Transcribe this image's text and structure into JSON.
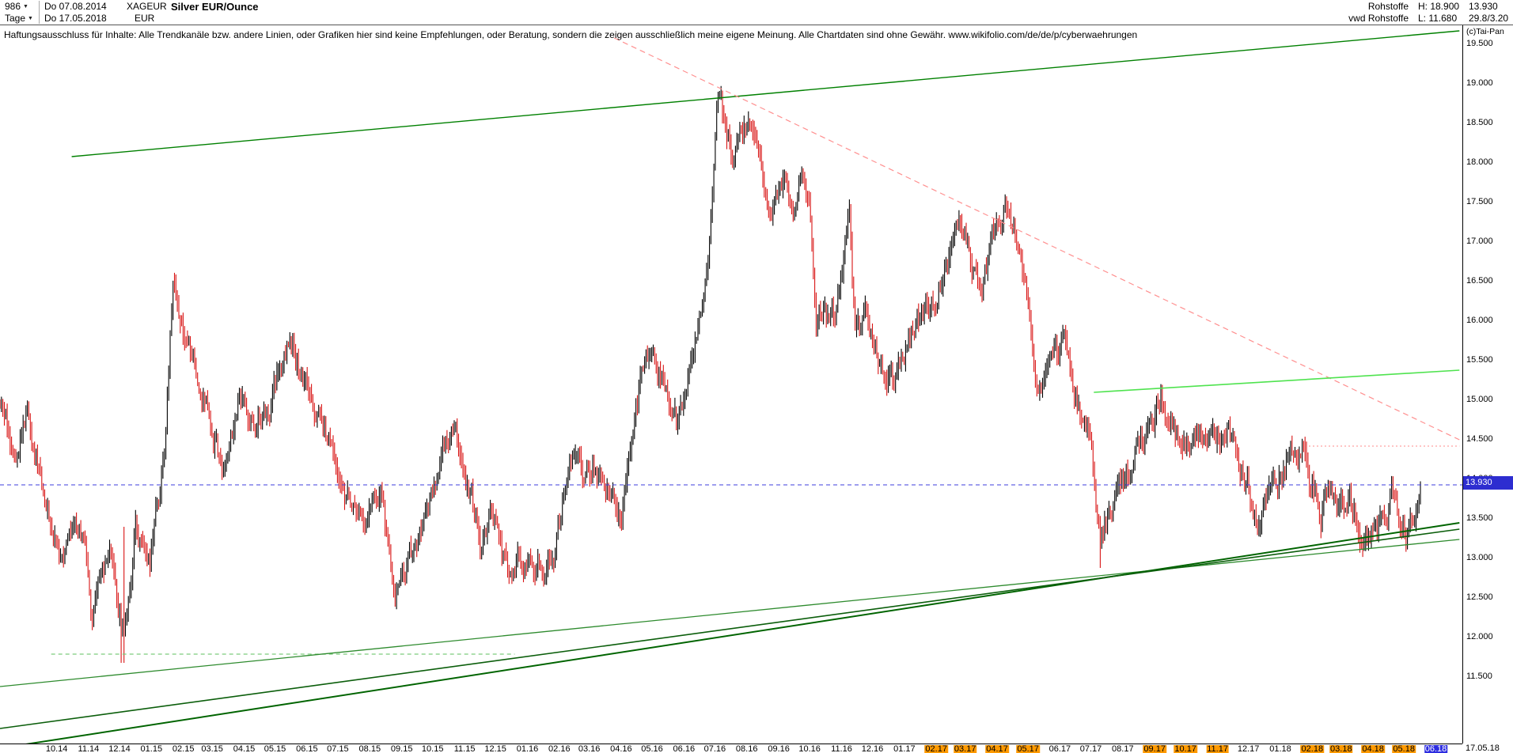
{
  "header": {
    "bars_count": "986",
    "period": "Tage",
    "date_from": "Do 07.08.2014",
    "date_to": "Do 17.05.2018",
    "symbol": "XAGEUR",
    "currency": "EUR",
    "title": "Silver EUR/Ounce",
    "group": "Rohstoffe",
    "source": "vwd Rohstoffe",
    "high_label": "H: 18.900",
    "low_label": "L: 11.680",
    "last_value": "13.930",
    "extra_value": "29.8/3.20",
    "copyright": "(c)Tai-Pan"
  },
  "disclaimer": "Haftungsausschluss für Inhalte: Alle Trendkanäle bzw. andere Linien, oder Grafiken hier sind keine Empfehlungen, oder Beratung, sondern die zeigen ausschließlich meine eigene Meinung. Alle Chartdaten sind ohne Gewähr.  www.wikifolio.com/de/de/p/cyberwaehrungen",
  "axis": {
    "price_badge": "13.930",
    "last_date": "17.05.18"
  },
  "chart_data": {
    "type": "ohlc-bar",
    "title": "Silver EUR/Ounce",
    "period": "Tage",
    "x_range": [
      "2014-08-07",
      "2018-05-17"
    ],
    "bar_count": 986,
    "high": 18.9,
    "low": 11.68,
    "last_close": 13.93,
    "ylim": [
      10.66,
      19.75
    ],
    "y_ticks": [
      "19.500",
      "19.000",
      "18.500",
      "18.000",
      "17.500",
      "17.000",
      "16.500",
      "16.000",
      "15.500",
      "15.000",
      "14.500",
      "14.000",
      "13.500",
      "13.000",
      "12.500",
      "12.000",
      "11.500"
    ],
    "x_ticks": [
      {
        "label": "10.14",
        "highlight": "none"
      },
      {
        "label": "11.14",
        "highlight": "none"
      },
      {
        "label": "12.14",
        "highlight": "none"
      },
      {
        "label": "01.15",
        "highlight": "none"
      },
      {
        "label": "02.15",
        "highlight": "none"
      },
      {
        "label": "03.15",
        "highlight": "none"
      },
      {
        "label": "04.15",
        "highlight": "none"
      },
      {
        "label": "05.15",
        "highlight": "none"
      },
      {
        "label": "06.15",
        "highlight": "none"
      },
      {
        "label": "07.15",
        "highlight": "none"
      },
      {
        "label": "08.15",
        "highlight": "none"
      },
      {
        "label": "09.15",
        "highlight": "none"
      },
      {
        "label": "10.15",
        "highlight": "none"
      },
      {
        "label": "11.15",
        "highlight": "none"
      },
      {
        "label": "12.15",
        "highlight": "none"
      },
      {
        "label": "01.16",
        "highlight": "none"
      },
      {
        "label": "02.16",
        "highlight": "none"
      },
      {
        "label": "03.16",
        "highlight": "none"
      },
      {
        "label": "04.16",
        "highlight": "none"
      },
      {
        "label": "05.16",
        "highlight": "none"
      },
      {
        "label": "06.16",
        "highlight": "none"
      },
      {
        "label": "07.16",
        "highlight": "none"
      },
      {
        "label": "08.16",
        "highlight": "none"
      },
      {
        "label": "09.16",
        "highlight": "none"
      },
      {
        "label": "10.16",
        "highlight": "none"
      },
      {
        "label": "11.16",
        "highlight": "none"
      },
      {
        "label": "12.16",
        "highlight": "none"
      },
      {
        "label": "01.17",
        "highlight": "none"
      },
      {
        "label": "02.17",
        "highlight": "orange"
      },
      {
        "label": "03.17",
        "highlight": "orange"
      },
      {
        "label": "04.17",
        "highlight": "orange"
      },
      {
        "label": "05.17",
        "highlight": "orange"
      },
      {
        "label": "06.17",
        "highlight": "none"
      },
      {
        "label": "07.17",
        "highlight": "none"
      },
      {
        "label": "08.17",
        "highlight": "none"
      },
      {
        "label": "09.17",
        "highlight": "orange"
      },
      {
        "label": "10.17",
        "highlight": "orange"
      },
      {
        "label": "11.17",
        "highlight": "orange"
      },
      {
        "label": "12.17",
        "highlight": "none"
      },
      {
        "label": "01.18",
        "highlight": "none"
      },
      {
        "label": "02.18",
        "highlight": "orange"
      },
      {
        "label": "03.18",
        "highlight": "orange"
      },
      {
        "label": "04.18",
        "highlight": "orange"
      },
      {
        "label": "05.18",
        "highlight": "orange"
      },
      {
        "label": "06.18",
        "highlight": "blue"
      }
    ],
    "anchors": [
      [
        "2014-08-07",
        14.8
      ],
      [
        "2014-08-20",
        14.45
      ],
      [
        "2014-09-02",
        14.9
      ],
      [
        "2014-09-22",
        13.65
      ],
      [
        "2014-10-03",
        13.05
      ],
      [
        "2014-10-13",
        13.45
      ],
      [
        "2014-10-29",
        13.15
      ],
      [
        "2014-11-05",
        12.35
      ],
      [
        "2014-11-21",
        12.95
      ],
      [
        "2014-11-28",
        12.4
      ],
      [
        "2014-12-05",
        11.95
      ],
      [
        "2014-12-16",
        13.45
      ],
      [
        "2014-12-31",
        13.0
      ],
      [
        "2015-01-14",
        14.3
      ],
      [
        "2015-01-22",
        16.55
      ],
      [
        "2015-02-02",
        15.9
      ],
      [
        "2015-02-13",
        15.25
      ],
      [
        "2015-02-24",
        14.85
      ],
      [
        "2015-03-11",
        14.15
      ],
      [
        "2015-03-26",
        14.9
      ],
      [
        "2015-04-10",
        14.7
      ],
      [
        "2015-04-24",
        14.8
      ],
      [
        "2015-05-14",
        15.85
      ],
      [
        "2015-05-26",
        15.4
      ],
      [
        "2015-06-08",
        14.7
      ],
      [
        "2015-06-19",
        14.6
      ],
      [
        "2015-07-07",
        13.95
      ],
      [
        "2015-07-24",
        13.35
      ],
      [
        "2015-08-12",
        13.75
      ],
      [
        "2015-08-26",
        12.5
      ],
      [
        "2015-09-11",
        13.1
      ],
      [
        "2015-09-25",
        13.55
      ],
      [
        "2015-10-15",
        14.65
      ],
      [
        "2015-10-28",
        14.35
      ],
      [
        "2015-11-18",
        13.25
      ],
      [
        "2015-11-25",
        13.5
      ],
      [
        "2015-12-14",
        12.65
      ],
      [
        "2015-12-24",
        13.0
      ],
      [
        "2016-01-08",
        12.85
      ],
      [
        "2016-01-26",
        13.1
      ],
      [
        "2016-02-11",
        14.2
      ],
      [
        "2016-02-23",
        14.0
      ],
      [
        "2016-03-04",
        14.15
      ],
      [
        "2016-03-18",
        13.95
      ],
      [
        "2016-04-01",
        13.6
      ],
      [
        "2016-04-21",
        15.4
      ],
      [
        "2016-05-02",
        15.65
      ],
      [
        "2016-05-24",
        14.75
      ],
      [
        "2016-06-08",
        15.45
      ],
      [
        "2016-06-24",
        16.4
      ],
      [
        "2016-07-04",
        18.85
      ],
      [
        "2016-07-13",
        18.2
      ],
      [
        "2016-07-20",
        18.0
      ],
      [
        "2016-08-02",
        18.55
      ],
      [
        "2016-08-15",
        17.85
      ],
      [
        "2016-08-25",
        17.4
      ],
      [
        "2016-09-06",
        17.9
      ],
      [
        "2016-09-16",
        17.3
      ],
      [
        "2016-09-22",
        17.8
      ],
      [
        "2016-09-30",
        17.3
      ],
      [
        "2016-10-07",
        16.0
      ],
      [
        "2016-10-25",
        16.1
      ],
      [
        "2016-11-09",
        17.2
      ],
      [
        "2016-11-14",
        15.9
      ],
      [
        "2016-11-25",
        15.95
      ],
      [
        "2016-12-05",
        15.6
      ],
      [
        "2016-12-20",
        15.25
      ],
      [
        "2017-01-12",
        16.0
      ],
      [
        "2017-01-31",
        16.3
      ],
      [
        "2017-02-24",
        17.3
      ],
      [
        "2017-03-14",
        16.45
      ],
      [
        "2017-03-30",
        17.0
      ],
      [
        "2017-04-13",
        17.45
      ],
      [
        "2017-05-01",
        16.2
      ],
      [
        "2017-05-09",
        15.1
      ],
      [
        "2017-05-23",
        15.4
      ],
      [
        "2017-06-06",
        15.55
      ],
      [
        "2017-06-21",
        14.8
      ],
      [
        "2017-06-30",
        14.5
      ],
      [
        "2017-07-10",
        13.1
      ],
      [
        "2017-07-18",
        13.6
      ],
      [
        "2017-07-28",
        13.9
      ],
      [
        "2017-08-15",
        14.35
      ],
      [
        "2017-08-28",
        14.7
      ],
      [
        "2017-09-07",
        15.1
      ],
      [
        "2017-09-21",
        14.6
      ],
      [
        "2017-10-06",
        14.35
      ],
      [
        "2017-10-16",
        14.7
      ],
      [
        "2017-10-27",
        14.45
      ],
      [
        "2017-11-10",
        14.55
      ],
      [
        "2017-11-22",
        14.3
      ],
      [
        "2017-12-12",
        13.45
      ],
      [
        "2017-12-29",
        14.05
      ],
      [
        "2018-01-15",
        14.4
      ],
      [
        "2018-01-25",
        14.3
      ],
      [
        "2018-02-05",
        13.8
      ],
      [
        "2018-02-09",
        13.55
      ],
      [
        "2018-02-16",
        13.9
      ],
      [
        "2018-03-01",
        13.6
      ],
      [
        "2018-03-09",
        13.75
      ],
      [
        "2018-03-20",
        13.3
      ],
      [
        "2018-03-29",
        13.35
      ],
      [
        "2018-04-11",
        13.5
      ],
      [
        "2018-04-19",
        13.8
      ],
      [
        "2018-04-27",
        13.55
      ],
      [
        "2018-05-03",
        13.4
      ],
      [
        "2018-05-11",
        13.65
      ],
      [
        "2018-05-17",
        13.93
      ]
    ],
    "spikes": [
      {
        "date": "2014-12-05",
        "low": 11.68,
        "bar_top": 13.4
      },
      {
        "date": "2017-07-10",
        "low": 12.88
      }
    ],
    "trend_lines": [
      {
        "name": "upper-green-trendline",
        "x1": 0.049,
        "p1": 18.08,
        "x2": 0.998,
        "p2": 19.67,
        "color": "#008000",
        "width": 1.4,
        "dash": null
      },
      {
        "name": "pink-dashed-trendline",
        "x1": 0.42,
        "p1": 19.58,
        "x2": 0.998,
        "p2": 14.5,
        "color": "#ff9090",
        "width": 1.2,
        "dash": "7 5"
      },
      {
        "name": "pink-dotted-level",
        "x1": 0.895,
        "p1": 14.42,
        "x2": 0.998,
        "p2": 14.42,
        "color": "#ffb0b0",
        "width": 1.4,
        "dash": "2 3"
      },
      {
        "name": "light-green-level",
        "x1": 0.748,
        "p1": 15.1,
        "x2": 0.998,
        "p2": 15.38,
        "color": "#4fe34f",
        "width": 1.6,
        "dash": null
      },
      {
        "name": "green-dashed-support",
        "x1": 0.035,
        "p1": 11.79,
        "x2": 0.352,
        "p2": 11.79,
        "color": "#7ccc7c",
        "width": 1.2,
        "dash": "5 4"
      },
      {
        "name": "dark-green-support-1",
        "x1": 0.0,
        "p1": 11.38,
        "x2": 0.998,
        "p2": 13.24,
        "color": "#2e8b2e",
        "width": 1.3,
        "dash": null
      },
      {
        "name": "dark-green-support-2",
        "x1": 0.0,
        "p1": 10.6,
        "x2": 0.998,
        "p2": 13.45,
        "color": "#006400",
        "width": 2,
        "dash": null
      },
      {
        "name": "dark-green-support-3",
        "x1": 0.0,
        "p1": 10.85,
        "x2": 0.998,
        "p2": 13.37,
        "color": "#0b5e0b",
        "width": 1.6,
        "dash": null
      },
      {
        "name": "current-price-line",
        "x1": 0.0,
        "p1": 13.93,
        "x2": 1.0,
        "p2": 13.93,
        "color": "#3c3cdc",
        "width": 1,
        "dash": "5 4"
      }
    ],
    "colors": {
      "up": "#000000",
      "down": "#d81414",
      "background": "#ffffff",
      "badge": "#2d2dd0"
    }
  }
}
